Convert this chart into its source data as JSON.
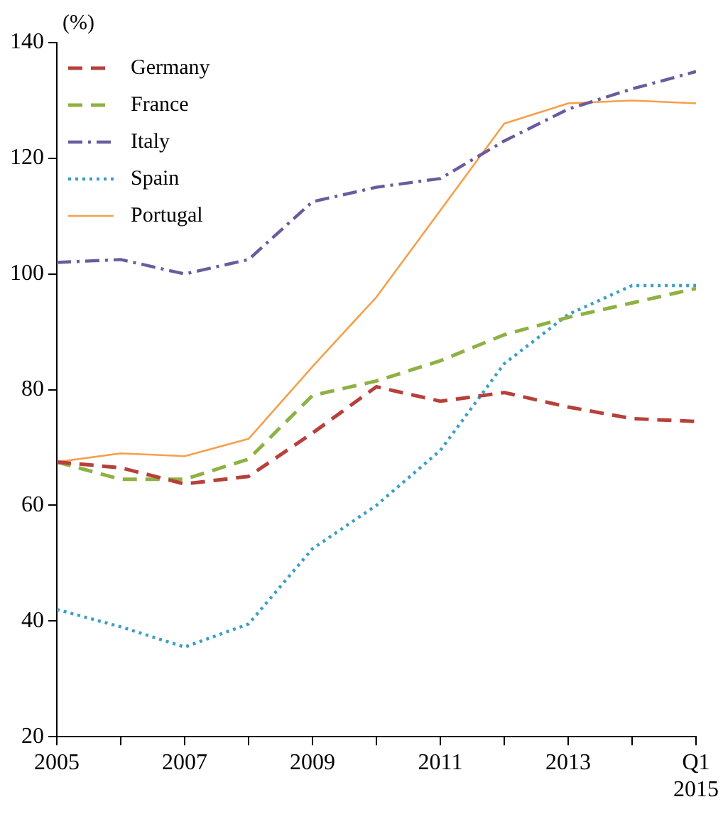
{
  "chart_data": {
    "type": "line",
    "ylabel": "(%)",
    "x": [
      2005,
      2006,
      2007,
      2008,
      2009,
      2010,
      2011,
      2012,
      2013,
      2014,
      2015
    ],
    "xlim": [
      2005,
      2015
    ],
    "xticks": [
      2005,
      {
        "value": 2006,
        "label": null
      },
      2007,
      {
        "value": 2008,
        "label": null
      },
      2009,
      {
        "value": 2010,
        "label": null
      },
      2011,
      {
        "value": 2012,
        "label": null
      },
      2013,
      {
        "value": 2014,
        "label": null
      },
      {
        "value": 2015,
        "label": "Q1\n2015"
      }
    ],
    "ylim": [
      20,
      140
    ],
    "yticks": [
      20,
      40,
      60,
      80,
      100,
      120,
      140
    ],
    "grid": false,
    "legend": "top left",
    "marker": "none",
    "series": [
      {
        "name": "Germany",
        "color": "#b6403a",
        "line_style": "dashed",
        "values": [
          67.5,
          66.5,
          63.7,
          65,
          72.5,
          80.5,
          78,
          79.5,
          77,
          75,
          74.5
        ]
      },
      {
        "name": "France",
        "color": "#8fb144",
        "line_style": "dashed",
        "values": [
          67.5,
          64.5,
          64.5,
          68,
          79,
          81.5,
          85,
          89.5,
          92.5,
          95,
          97.5
        ]
      },
      {
        "name": "Italy",
        "color": "#6b5b9e",
        "line_style": "dashdot",
        "values": [
          102,
          102.5,
          100,
          102.5,
          112.5,
          115,
          116.5,
          123,
          128.5,
          132,
          135
        ]
      },
      {
        "name": "Spain",
        "color": "#3a9fc6",
        "line_style": "dotted",
        "values": [
          42,
          39,
          35.5,
          39.5,
          52.5,
          60,
          69.5,
          84.5,
          93,
          98,
          98
        ]
      },
      {
        "name": "Portugal",
        "color": "#f5a04a",
        "line_style": "solid",
        "values": [
          67.5,
          69,
          68.5,
          71.5,
          84,
          96,
          111,
          126,
          129.5,
          130,
          129.5
        ]
      }
    ]
  }
}
